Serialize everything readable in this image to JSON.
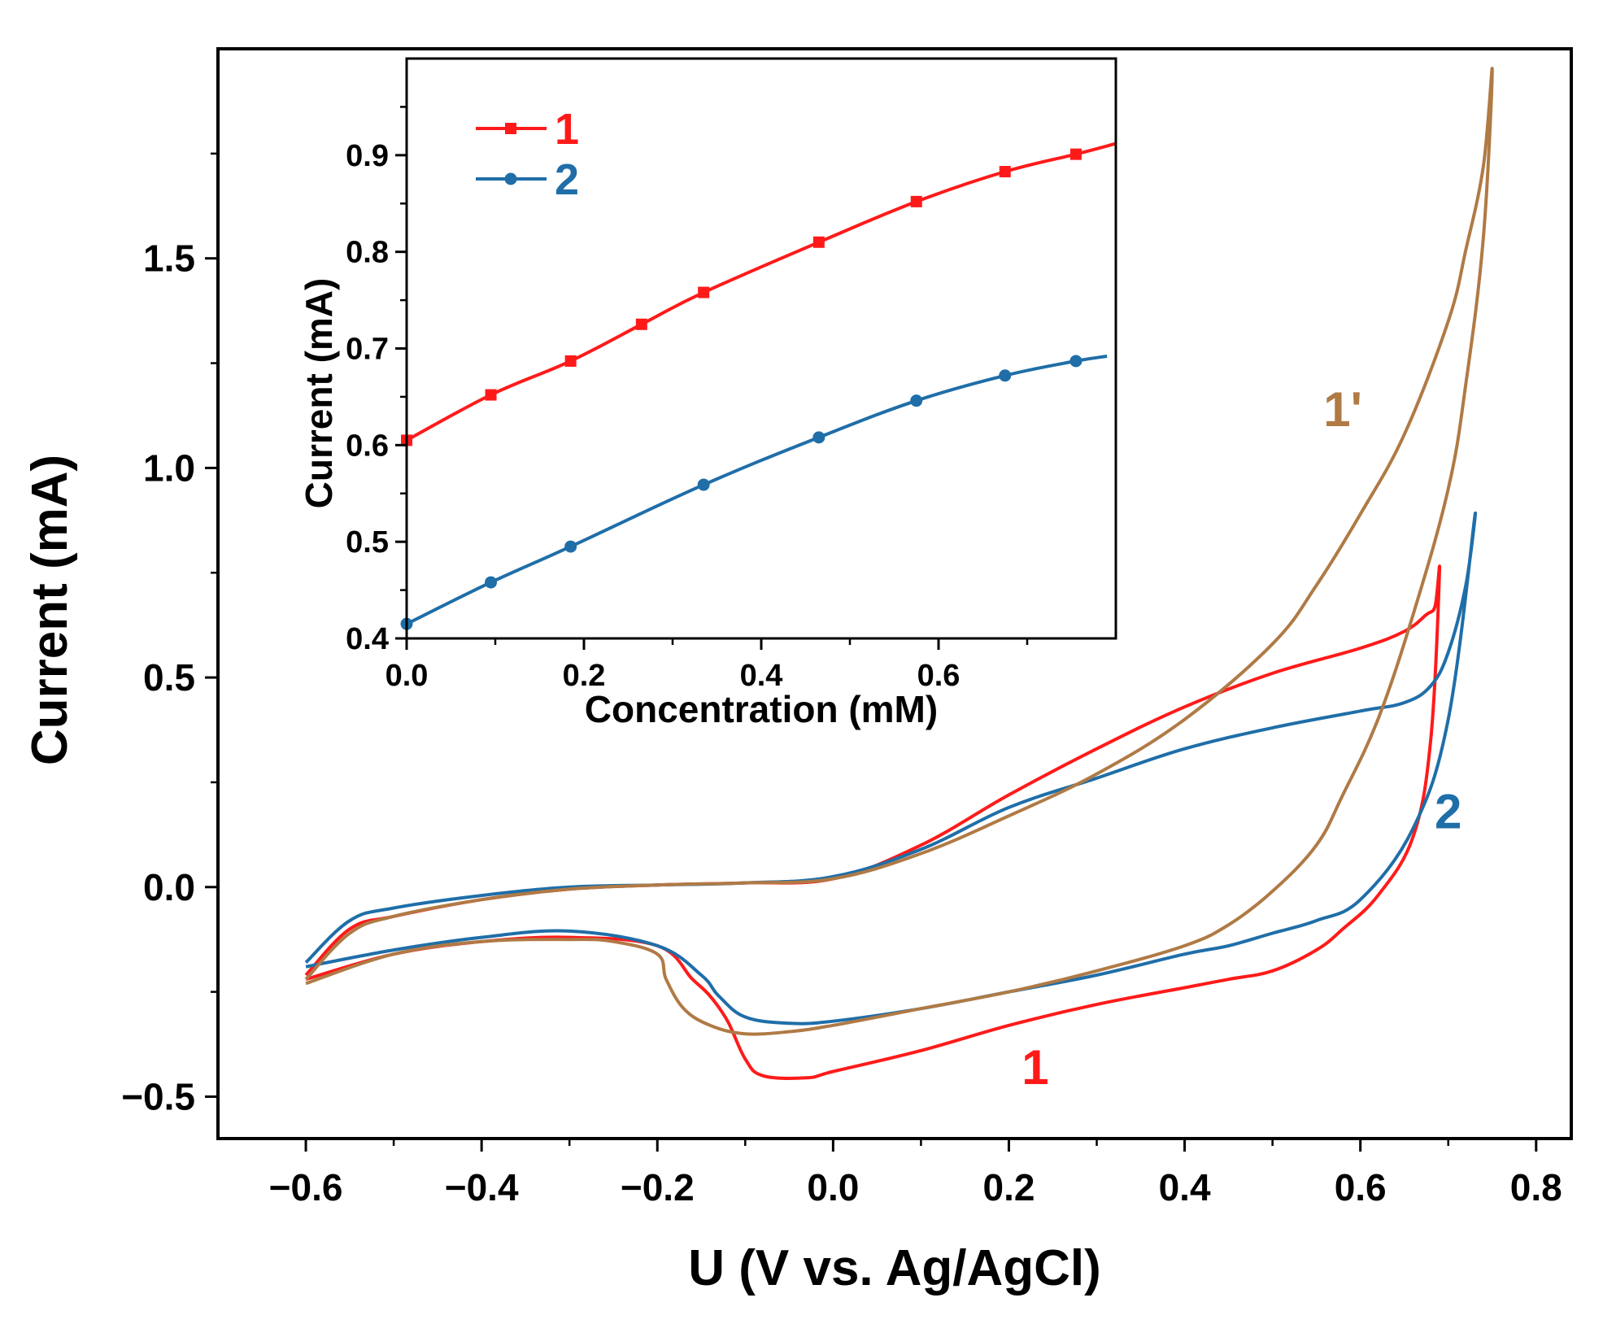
{
  "chart_data": [
    {
      "type": "line",
      "name": "main",
      "xlabel": "U (V vs. Ag/AgCl)",
      "ylabel": "Current (mA)",
      "xlim": [
        -0.7,
        0.84
      ],
      "ylim": [
        -0.6,
        2.0
      ],
      "xticks": [
        "−0.6",
        "−0.4",
        "−0.2",
        "0.0",
        "0.2",
        "0.4",
        "0.6",
        "0.8"
      ],
      "xtick_values": [
        -0.6,
        -0.4,
        -0.2,
        0.0,
        0.2,
        0.4,
        0.6,
        0.8
      ],
      "yticks": [
        "−0.5",
        "0.0",
        "0.5",
        "1.0",
        "1.5"
      ],
      "ytick_values": [
        -0.5,
        0.0,
        0.5,
        1.0,
        1.5
      ],
      "grid": false,
      "series": [
        {
          "name": "1",
          "color": "#ff1a1a",
          "x": [
            -0.6,
            -0.55,
            -0.5,
            -0.4,
            -0.3,
            -0.2,
            -0.1,
            0.0,
            0.1,
            0.2,
            0.3,
            0.4,
            0.5,
            0.6,
            0.65,
            0.675,
            0.685,
            0.69,
            0.68,
            0.66,
            0.62,
            0.58,
            0.55,
            0.5,
            0.45,
            0.4,
            0.3,
            0.2,
            0.1,
            0.0,
            -0.03,
            -0.08,
            -0.1,
            -0.12,
            -0.14,
            -0.16,
            -0.2,
            -0.3,
            -0.4,
            -0.5,
            -0.6
          ],
          "y": [
            -0.21,
            -0.1,
            -0.07,
            -0.03,
            -0.005,
            0.005,
            0.01,
            0.02,
            0.1,
            0.22,
            0.33,
            0.43,
            0.51,
            0.57,
            0.61,
            0.65,
            0.67,
            0.75,
            0.35,
            0.12,
            -0.02,
            -0.1,
            -0.15,
            -0.2,
            -0.22,
            -0.24,
            -0.28,
            -0.33,
            -0.39,
            -0.44,
            -0.455,
            -0.45,
            -0.41,
            -0.32,
            -0.26,
            -0.22,
            -0.14,
            -0.12,
            -0.13,
            -0.16,
            -0.22
          ]
        },
        {
          "name": "2",
          "color": "#1f6ea8",
          "x": [
            -0.6,
            -0.55,
            -0.5,
            -0.4,
            -0.3,
            -0.2,
            -0.1,
            0.0,
            0.1,
            0.2,
            0.3,
            0.4,
            0.5,
            0.6,
            0.65,
            0.68,
            0.7,
            0.72,
            0.73,
            0.7,
            0.66,
            0.6,
            0.55,
            0.5,
            0.45,
            0.4,
            0.3,
            0.2,
            0.1,
            0.0,
            -0.05,
            -0.1,
            -0.13,
            -0.15,
            -0.2,
            -0.3,
            -0.4,
            -0.5,
            -0.6
          ],
          "y": [
            -0.18,
            -0.08,
            -0.05,
            -0.02,
            0.0,
            0.005,
            0.01,
            0.025,
            0.09,
            0.19,
            0.26,
            0.33,
            0.38,
            0.42,
            0.44,
            0.48,
            0.56,
            0.72,
            0.88,
            0.4,
            0.14,
            -0.03,
            -0.08,
            -0.11,
            -0.14,
            -0.16,
            -0.21,
            -0.25,
            -0.29,
            -0.32,
            -0.325,
            -0.31,
            -0.26,
            -0.21,
            -0.14,
            -0.105,
            -0.12,
            -0.15,
            -0.19
          ]
        },
        {
          "name": "1'",
          "color": "#b07a45",
          "x": [
            -0.6,
            -0.55,
            -0.5,
            -0.4,
            -0.3,
            -0.2,
            -0.1,
            0.0,
            0.1,
            0.2,
            0.3,
            0.4,
            0.5,
            0.55,
            0.6,
            0.65,
            0.7,
            0.72,
            0.74,
            0.75,
            0.74,
            0.72,
            0.7,
            0.66,
            0.62,
            0.58,
            0.55,
            0.5,
            0.45,
            0.4,
            0.3,
            0.2,
            0.1,
            0.0,
            -0.05,
            -0.1,
            -0.14,
            -0.17,
            -0.19,
            -0.2,
            -0.25,
            -0.3,
            -0.4,
            -0.5,
            -0.6
          ],
          "y": [
            -0.22,
            -0.11,
            -0.07,
            -0.03,
            -0.005,
            0.005,
            0.01,
            0.02,
            0.08,
            0.17,
            0.27,
            0.4,
            0.58,
            0.72,
            0.89,
            1.08,
            1.35,
            1.52,
            1.72,
            1.95,
            1.55,
            1.2,
            0.95,
            0.65,
            0.4,
            0.22,
            0.1,
            -0.01,
            -0.09,
            -0.14,
            -0.2,
            -0.25,
            -0.29,
            -0.33,
            -0.345,
            -0.35,
            -0.33,
            -0.29,
            -0.22,
            -0.16,
            -0.13,
            -0.125,
            -0.13,
            -0.16,
            -0.23
          ]
        }
      ],
      "annotations": [
        {
          "text": "1",
          "x": 0.23,
          "y": -0.47,
          "color": "#ff1a1a"
        },
        {
          "text": "2",
          "x": 0.7,
          "y": 0.14,
          "color": "#1f6ea8"
        },
        {
          "text": "1'",
          "x": 0.58,
          "y": 1.1,
          "color": "#b07a45"
        }
      ]
    },
    {
      "type": "line",
      "name": "inset",
      "xlabel": "Concentration (mM)",
      "ylabel": "Current (mA)",
      "xlim": [
        0.0,
        0.8
      ],
      "ylim": [
        0.4,
        1.0
      ],
      "xticks": [
        "0.0",
        "0.2",
        "0.4",
        "0.6"
      ],
      "xtick_values": [
        0.0,
        0.2,
        0.4,
        0.6
      ],
      "yticks": [
        "0.4",
        "0.5",
        "0.6",
        "0.7",
        "0.8",
        "0.9"
      ],
      "ytick_values": [
        0.4,
        0.5,
        0.6,
        0.7,
        0.8,
        0.9
      ],
      "grid": false,
      "legend": "top-left",
      "series": [
        {
          "name": "1",
          "color": "#ff1a1a",
          "marker": "square",
          "x": [
            0.0,
            0.095,
            0.185,
            0.265,
            0.335,
            0.465,
            0.575,
            0.675,
            0.755
          ],
          "y": [
            0.605,
            0.652,
            0.687,
            0.725,
            0.758,
            0.81,
            0.852,
            0.883,
            0.901
          ],
          "line_end": [
            0.8,
            0.912
          ]
        },
        {
          "name": "2",
          "color": "#1f6ea8",
          "marker": "circle",
          "x": [
            0.0,
            0.095,
            0.185,
            0.335,
            0.465,
            0.575,
            0.675,
            0.755
          ],
          "y": [
            0.415,
            0.458,
            0.495,
            0.559,
            0.608,
            0.646,
            0.672,
            0.687
          ],
          "line_end": [
            0.79,
            0.692
          ]
        }
      ]
    }
  ]
}
